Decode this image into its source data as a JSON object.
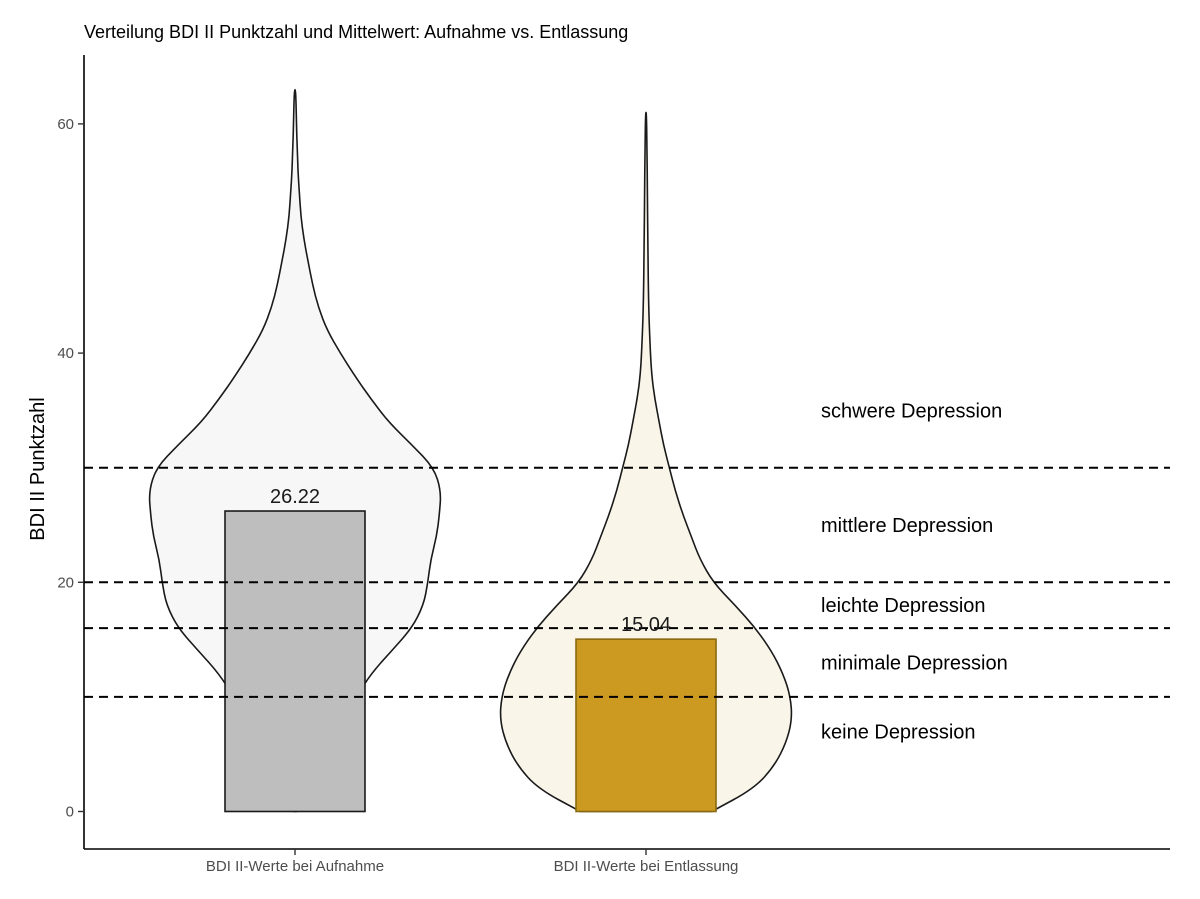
{
  "chart_data": {
    "type": "bar",
    "title": "Verteilung BDI II Punktzahl und Mittelwert: Aufnahme vs. Entlassung",
    "xlabel": "",
    "ylabel": "BDI II Punktzahl",
    "ylim": [
      -3,
      66
    ],
    "yticks": [
      "0",
      "20",
      "40",
      "60"
    ],
    "grid": false,
    "categories": [
      "BDI II-Werte bei Aufnahme",
      "BDI II-Werte bei Entlassung"
    ],
    "values": [
      26.22,
      15.04
    ],
    "value_labels": [
      "26.22",
      "15.04"
    ],
    "bar_colors": [
      "#bebebe",
      "#cc9a20"
    ],
    "bar_edge_colors": [
      "#1a1a1a",
      "#8a6a10"
    ],
    "violin_fill_colors": [
      "#f7f7f7",
      "#faf5e9"
    ],
    "violins": [
      {
        "category": "BDI II-Werte bei Aufnahme",
        "y_min": 0,
        "y_max": 63,
        "profile": [
          [
            0,
            0.01
          ],
          [
            2,
            0.04
          ],
          [
            4,
            0.12
          ],
          [
            6,
            0.24
          ],
          [
            8,
            0.34
          ],
          [
            10,
            0.42
          ],
          [
            12,
            0.52
          ],
          [
            14,
            0.66
          ],
          [
            16,
            0.8
          ],
          [
            18,
            0.88
          ],
          [
            20,
            0.91
          ],
          [
            22,
            0.93
          ],
          [
            24,
            0.97
          ],
          [
            26,
            0.99
          ],
          [
            28,
            1.0
          ],
          [
            30,
            0.95
          ],
          [
            32,
            0.8
          ],
          [
            34,
            0.64
          ],
          [
            36,
            0.52
          ],
          [
            38,
            0.41
          ],
          [
            40,
            0.31
          ],
          [
            42,
            0.22
          ],
          [
            44,
            0.16
          ],
          [
            46,
            0.12
          ],
          [
            48,
            0.09
          ],
          [
            50,
            0.06
          ],
          [
            52,
            0.04
          ],
          [
            54,
            0.03
          ],
          [
            56,
            0.02
          ],
          [
            58,
            0.015
          ],
          [
            60,
            0.01
          ],
          [
            63,
            0.005
          ]
        ]
      },
      {
        "category": "BDI II-Werte bei Entlassung",
        "y_min": 0,
        "y_max": 61,
        "profile": [
          [
            0,
            0.45
          ],
          [
            2,
            0.74
          ],
          [
            4,
            0.88
          ],
          [
            6,
            0.96
          ],
          [
            8,
            1.0
          ],
          [
            10,
            0.99
          ],
          [
            12,
            0.94
          ],
          [
            14,
            0.86
          ],
          [
            16,
            0.75
          ],
          [
            18,
            0.61
          ],
          [
            20,
            0.46
          ],
          [
            22,
            0.37
          ],
          [
            24,
            0.31
          ],
          [
            26,
            0.25
          ],
          [
            28,
            0.2
          ],
          [
            30,
            0.16
          ],
          [
            32,
            0.12
          ],
          [
            34,
            0.09
          ],
          [
            36,
            0.06
          ],
          [
            38,
            0.04
          ],
          [
            40,
            0.03
          ],
          [
            44,
            0.018
          ],
          [
            50,
            0.012
          ],
          [
            54,
            0.01
          ],
          [
            58,
            0.006
          ],
          [
            61,
            0.003
          ]
        ]
      }
    ],
    "reference_lines": [
      30,
      20,
      16,
      10
    ],
    "band_labels": [
      {
        "text": "schwere Depression",
        "y": 35
      },
      {
        "text": "mittlere Depression",
        "y": 25
      },
      {
        "text": "leichte Depression",
        "y": 18
      },
      {
        "text": "minimale Depression",
        "y": 13
      },
      {
        "text": "keine Depression",
        "y": 7
      }
    ]
  }
}
